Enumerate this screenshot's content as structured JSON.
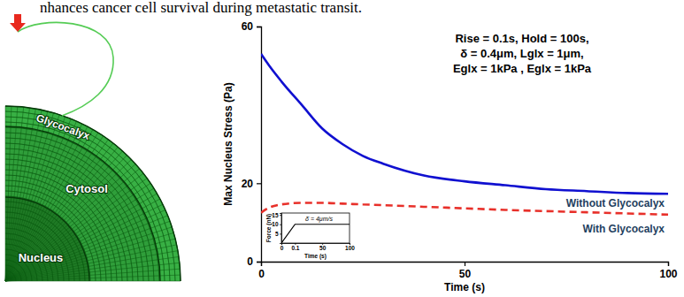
{
  "caption": "nhances cancer cell survival during metastatic transit.",
  "diagram": {
    "labels": [
      "Glycocalyx",
      "Cytosol",
      "Nucleus"
    ]
  },
  "chart_data": [
    {
      "type": "line",
      "annotations": [
        "Rise = 0.1s, Hold = 100s,",
        "δ = 0.4μm, Lglx = 1μm,",
        "Eglx = 1kPa , Eglx = 1kPa"
      ],
      "xlabel": "Time (s)",
      "ylabel": "Max Nucleus Stress (Pa)",
      "x": [
        0,
        2,
        5,
        10,
        15,
        20,
        25,
        30,
        40,
        50,
        60,
        70,
        80,
        90,
        100
      ],
      "series": [
        {
          "name": "Without Glycocalyx",
          "color": "#1010d0",
          "line_style": "solid",
          "values": [
            53,
            50,
            46,
            40,
            34,
            30,
            27,
            25,
            22,
            20.5,
            19.5,
            18.5,
            18,
            17.5,
            17.3
          ]
        },
        {
          "name": "With Glycocalyx",
          "color": "#e8302a",
          "line_style": "dashed",
          "values": [
            12.5,
            13.8,
            14.6,
            15,
            15,
            14.8,
            14.6,
            14.4,
            14,
            13.6,
            13.2,
            12.9,
            12.6,
            12.3,
            12
          ]
        }
      ],
      "xlim": [
        0,
        100
      ],
      "xticks": [
        0,
        50,
        100
      ],
      "ylim": [
        0,
        60
      ],
      "yticks": [
        0,
        20,
        60
      ]
    },
    {
      "type": "line",
      "annotations": [
        "δ̇ = 4μm/s"
      ],
      "xlabel": "Time (s)",
      "ylabel": "Force (nN)",
      "x": [
        0,
        0.1,
        100
      ],
      "series": [
        {
          "color": "#000000",
          "line_style": "solid",
          "values": [
            0,
            10,
            10
          ]
        }
      ],
      "xlim": [
        0,
        100
      ],
      "xticks": [
        0,
        0.1,
        50,
        100
      ],
      "ylim": [
        0,
        16
      ],
      "yticks": [
        5,
        10,
        15
      ]
    }
  ]
}
